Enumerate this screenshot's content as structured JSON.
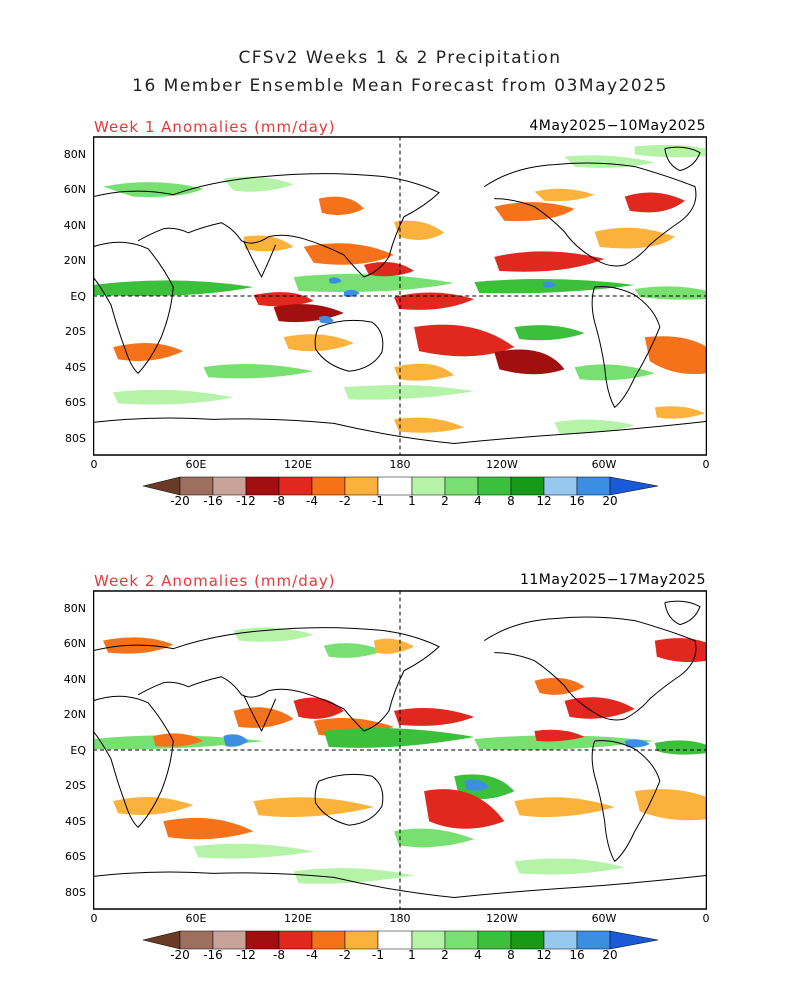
{
  "title": {
    "line1": "CFSv2 Weeks 1 & 2 Precipitation",
    "line2": "16 Member Ensemble Mean Forecast from 03May2025"
  },
  "lat_labels": [
    "80N",
    "60N",
    "40N",
    "20N",
    "EQ",
    "20S",
    "40S",
    "60S",
    "80S"
  ],
  "lon_labels": [
    "0",
    "60E",
    "120E",
    "180",
    "120W",
    "60W",
    "0"
  ],
  "colorbar": {
    "labels": [
      "-20",
      "-16",
      "-12",
      "-8",
      "-4",
      "-2",
      "-1",
      "1",
      "2",
      "4",
      "8",
      "12",
      "16",
      "20"
    ],
    "colors": {
      "lt_-20": "#6b3a26",
      "-20_-16": "#9e6e5e",
      "-16_-12": "#c8a39a",
      "-12_-8": "#a10f0f",
      "-8_-4": "#e0281e",
      "-4_-2": "#f5721a",
      "-2_-1": "#fbb23d",
      "-1_1": "#ffffff",
      "1_2": "#b4f3a8",
      "2_4": "#78e070",
      "4_8": "#3cc03c",
      "8_12": "#169a16",
      "12_16": "#96c8f0",
      "16_20": "#3c8ee0",
      "gt_20": "#1a5ad8"
    }
  },
  "panels": [
    {
      "label": "Week 1 Anomalies (mm/day)",
      "dates": "4May2025−10May2025"
    },
    {
      "label": "Week 2 Anomalies (mm/day)",
      "dates": "11May2025−17May2025"
    }
  ]
}
